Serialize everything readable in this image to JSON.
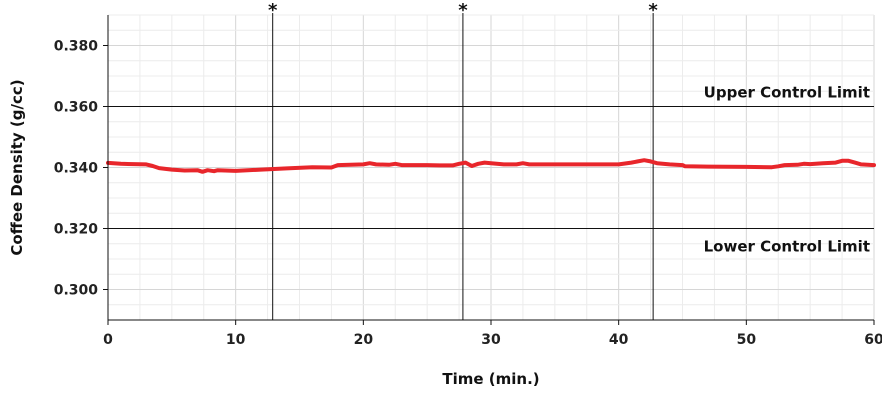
{
  "chart_data": {
    "type": "line",
    "title": "",
    "xlabel": "Time (min.)",
    "ylabel": "Coffee Density (g/cc)",
    "xlim": [
      0,
      60
    ],
    "ylim": [
      0.29,
      0.39
    ],
    "x_ticks": [
      "0",
      "10",
      "20",
      "30",
      "40",
      "50",
      "60"
    ],
    "x_tick_values": [
      0,
      10,
      20,
      30,
      40,
      50,
      60
    ],
    "y_ticks": [
      "0.300",
      "0.320",
      "0.340",
      "0.360",
      "0.380"
    ],
    "y_tick_values": [
      0.3,
      0.32,
      0.34,
      0.36,
      0.38
    ],
    "grid": true,
    "series_color": "#e8262b",
    "upper_control_limit": {
      "label": "Upper Control Limit",
      "value": 0.36
    },
    "lower_control_limit": {
      "label": "Lower Control Limit",
      "value": 0.32
    },
    "markers": [
      {
        "x": 12.9,
        "label": "*"
      },
      {
        "x": 27.8,
        "label": "*"
      },
      {
        "x": 42.7,
        "label": "*"
      }
    ],
    "series": [
      {
        "values": [
          [
            0,
            0.3415
          ],
          [
            1,
            0.3412
          ],
          [
            2,
            0.3411
          ],
          [
            3,
            0.341
          ],
          [
            3.5,
            0.3405
          ],
          [
            4,
            0.3398
          ],
          [
            5,
            0.3393
          ],
          [
            6,
            0.339
          ],
          [
            7,
            0.3391
          ],
          [
            7.4,
            0.3386
          ],
          [
            7.8,
            0.3391
          ],
          [
            8.3,
            0.3388
          ],
          [
            8.6,
            0.3391
          ],
          [
            10,
            0.3389
          ],
          [
            12,
            0.3393
          ],
          [
            14,
            0.3397
          ],
          [
            16,
            0.3401
          ],
          [
            17.5,
            0.34
          ],
          [
            18,
            0.3408
          ],
          [
            19,
            0.3409
          ],
          [
            20,
            0.341
          ],
          [
            20.5,
            0.3414
          ],
          [
            21,
            0.341
          ],
          [
            22,
            0.3409
          ],
          [
            22.5,
            0.3412
          ],
          [
            23,
            0.3408
          ],
          [
            25,
            0.3408
          ],
          [
            26,
            0.3407
          ],
          [
            27,
            0.3407
          ],
          [
            27.5,
            0.3412
          ],
          [
            28,
            0.3416
          ],
          [
            28.5,
            0.3405
          ],
          [
            29,
            0.3412
          ],
          [
            29.5,
            0.3416
          ],
          [
            30,
            0.3414
          ],
          [
            31,
            0.341
          ],
          [
            32,
            0.341
          ],
          [
            32.5,
            0.3414
          ],
          [
            33,
            0.341
          ],
          [
            35,
            0.341
          ],
          [
            37,
            0.341
          ],
          [
            39,
            0.341
          ],
          [
            40,
            0.341
          ],
          [
            41,
            0.3416
          ],
          [
            41.5,
            0.342
          ],
          [
            42,
            0.3424
          ],
          [
            42.5,
            0.342
          ],
          [
            43,
            0.3414
          ],
          [
            44,
            0.341
          ],
          [
            45,
            0.3408
          ],
          [
            45.2,
            0.3404
          ],
          [
            47,
            0.3403
          ],
          [
            50,
            0.3402
          ],
          [
            52,
            0.3401
          ],
          [
            52.5,
            0.3404
          ],
          [
            53,
            0.3408
          ],
          [
            54,
            0.3409
          ],
          [
            54.5,
            0.3412
          ],
          [
            55,
            0.3411
          ],
          [
            56,
            0.3414
          ],
          [
            57,
            0.3416
          ],
          [
            57.5,
            0.3422
          ],
          [
            58,
            0.3422
          ],
          [
            58.5,
            0.3416
          ],
          [
            59,
            0.341
          ],
          [
            60,
            0.3408
          ]
        ]
      }
    ]
  }
}
